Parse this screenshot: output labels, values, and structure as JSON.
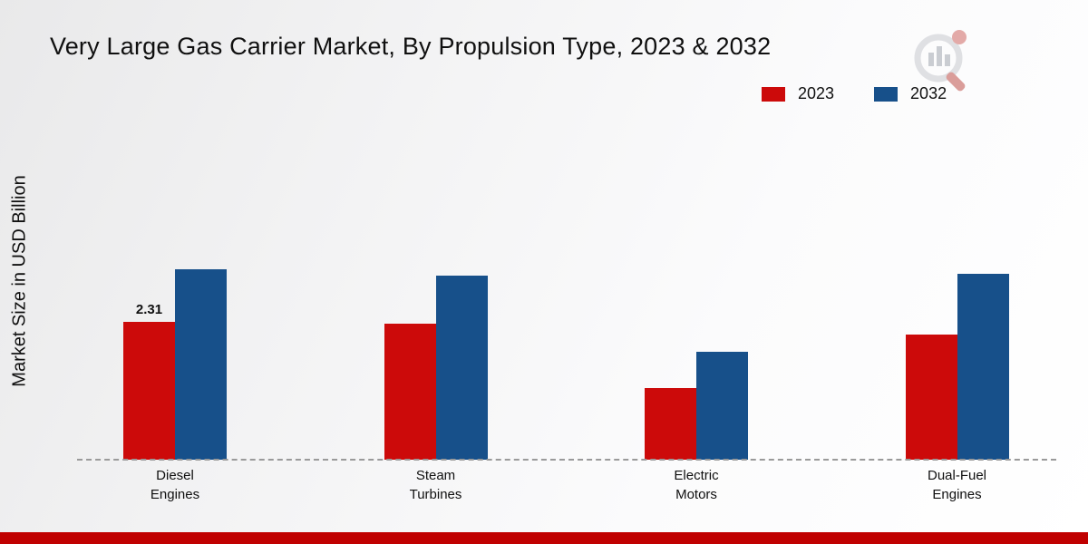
{
  "chart_data": {
    "type": "bar",
    "title": "Very Large Gas Carrier Market, By Propulsion Type, 2023 & 2032",
    "xlabel": "",
    "ylabel": "Market Size in USD Billion",
    "categories": [
      "Diesel\nEngines",
      "Steam\nTurbines",
      "Electric\nMotors",
      "Dual-Fuel\nEngines"
    ],
    "series": [
      {
        "name": "2023",
        "color": "#cc0a0a",
        "values": [
          2.31,
          2.28,
          1.2,
          2.1
        ]
      },
      {
        "name": "2032",
        "color": "#17508a",
        "values": [
          3.2,
          3.1,
          1.82,
          3.12
        ]
      }
    ],
    "ylim": [
      0,
      4
    ],
    "grid": false,
    "legend_position": "top-right",
    "annotations": [
      {
        "series": 0,
        "category": 0,
        "text": "2.31"
      }
    ]
  }
}
